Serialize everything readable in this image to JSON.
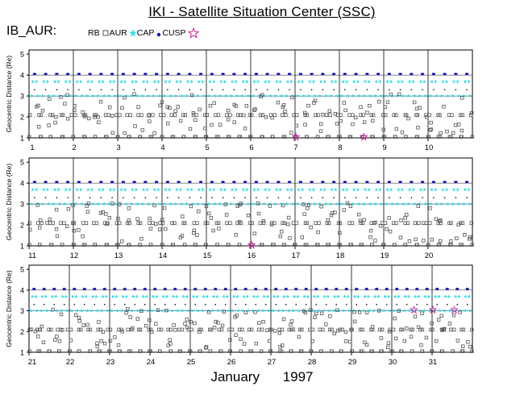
{
  "header": {
    "title": "IKI - Satellite Situation Center (SSC)",
    "satellite": "IB_AUR:"
  },
  "legend": [
    {
      "label": "RB",
      "marker": "none",
      "color": "#000000"
    },
    {
      "label": "AUR",
      "marker": "open-square",
      "color": "#555555"
    },
    {
      "label": "CAP",
      "marker": "star",
      "color": "#33dde8"
    },
    {
      "label": "CUSP",
      "marker": "dot",
      "color": "#1010c0"
    },
    {
      "label": "",
      "marker": "open-star",
      "color": "#d020a0"
    }
  ],
  "footer": {
    "month": "January",
    "year": "1997"
  },
  "chart_data": {
    "type": "scatter",
    "ylabel": "Geocentric Distance (Re)",
    "ylim": [
      1,
      5.2
    ],
    "yticks": [
      1,
      2,
      3,
      4,
      5
    ],
    "panels": [
      {
        "days": [
          1,
          2,
          3,
          4,
          5,
          6,
          7,
          8,
          9,
          10
        ],
        "xticks": [
          "1",
          "2",
          "3",
          "4",
          "5",
          "6",
          "7",
          "8",
          "9",
          "10"
        ]
      },
      {
        "days": [
          11,
          12,
          13,
          14,
          15,
          16,
          17,
          18,
          19,
          20
        ],
        "xticks": [
          "11",
          "12",
          "13",
          "14",
          "15",
          "16",
          "17",
          "18",
          "19",
          "20"
        ]
      },
      {
        "days": [
          21,
          22,
          23,
          24,
          25,
          26,
          27,
          28,
          29,
          30,
          31
        ],
        "xticks": [
          "21",
          "22",
          "23",
          "24",
          "25",
          "26",
          "27",
          "28",
          "29",
          "30",
          "31"
        ]
      }
    ],
    "orbit": {
      "apogee_re": 4.1,
      "perigee_re": 1.05,
      "orbits_per_day": 4
    },
    "magenta_markers_day": [
      7,
      8,
      16,
      30,
      31,
      31
    ]
  }
}
